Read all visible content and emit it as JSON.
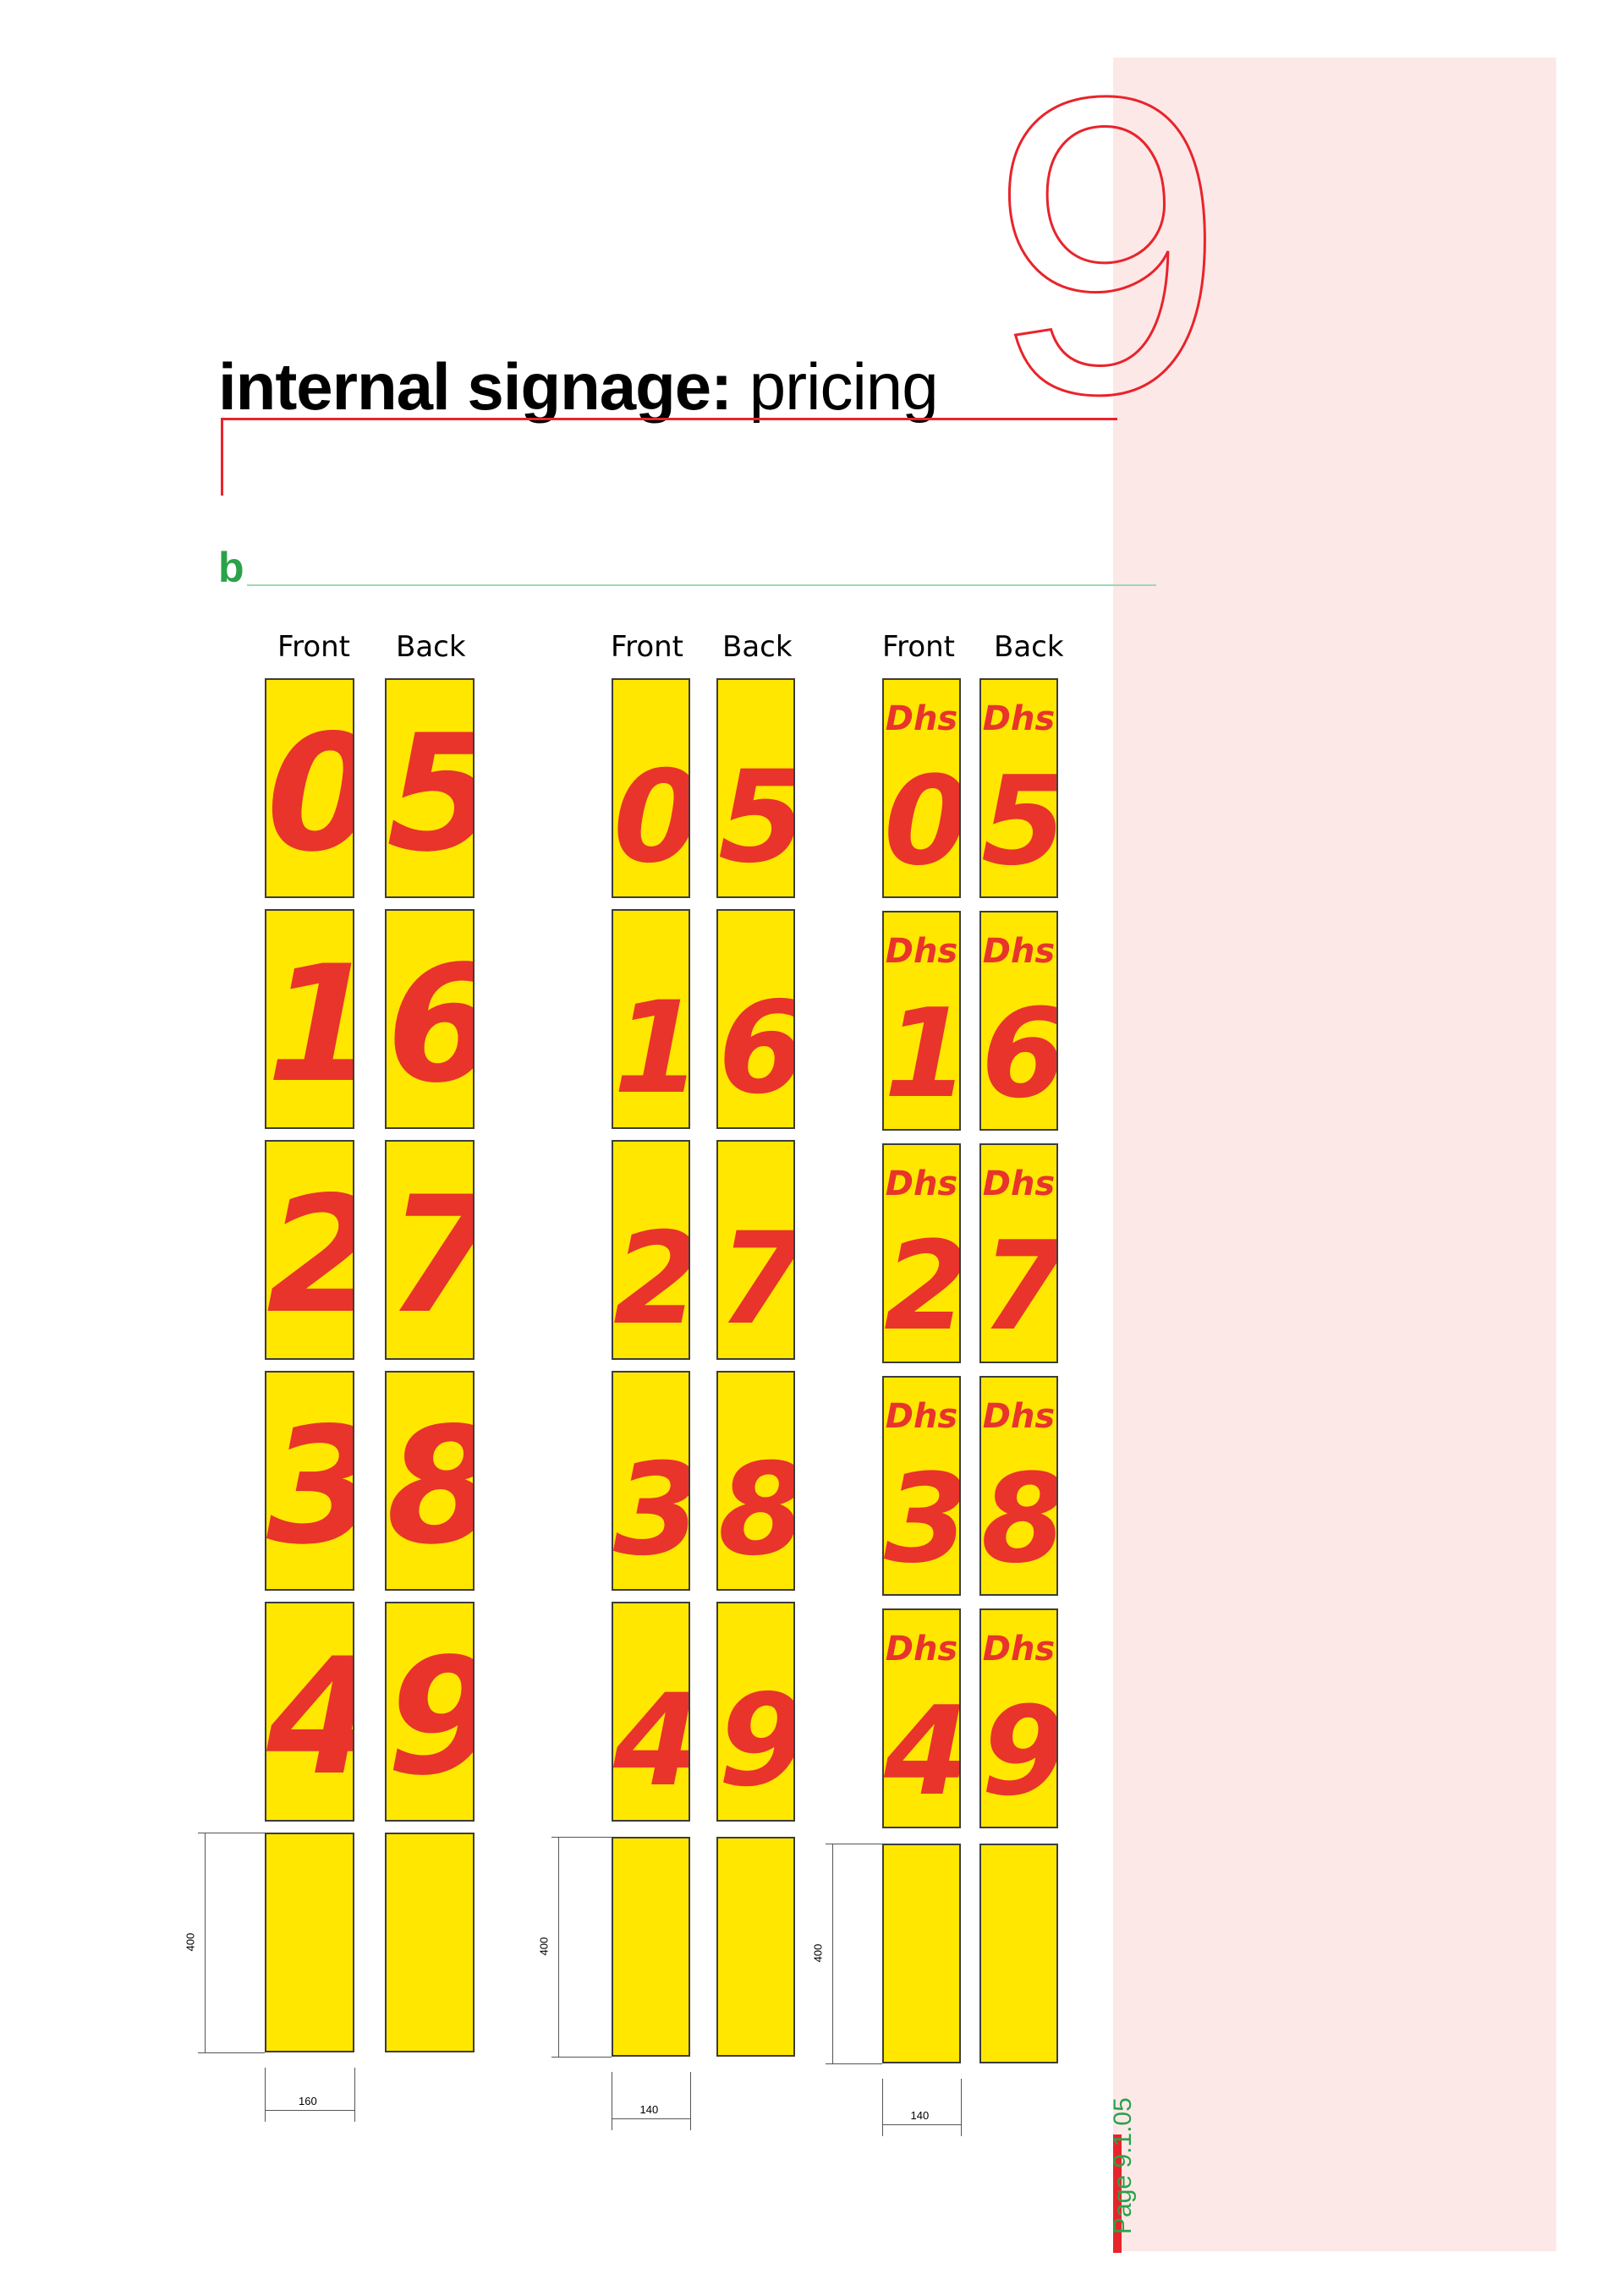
{
  "chapter_number": "9",
  "title": {
    "bold": "internal signage:",
    "light": "pricing"
  },
  "section_letter": "b",
  "column_headers": [
    "Front",
    "Back",
    "Front",
    "Back",
    "Front",
    "Back"
  ],
  "groups": [
    {
      "front": [
        "0",
        "1",
        "2",
        "3",
        "4"
      ],
      "back": [
        "5",
        "6",
        "7",
        "8",
        "9"
      ],
      "prefix": "",
      "height_dim": "400",
      "width_dim": "160"
    },
    {
      "front": [
        "0",
        "1",
        "2",
        "3",
        "4"
      ],
      "back": [
        "5",
        "6",
        "7",
        "8",
        "9"
      ],
      "prefix": "",
      "height_dim": "400",
      "width_dim": "140"
    },
    {
      "front": [
        "0",
        "1",
        "2",
        "3",
        "4"
      ],
      "back": [
        "5",
        "6",
        "7",
        "8",
        "9"
      ],
      "prefix": "Dhs",
      "height_dim": "400",
      "width_dim": "140"
    }
  ],
  "page_number": "Page 9.1.05",
  "colors": {
    "sign_yellow": "#ffe700",
    "sign_red": "#e8342b",
    "accent_red": "#e8242b",
    "accent_green": "#2aa24a",
    "band_pink": "#fde8e8"
  }
}
